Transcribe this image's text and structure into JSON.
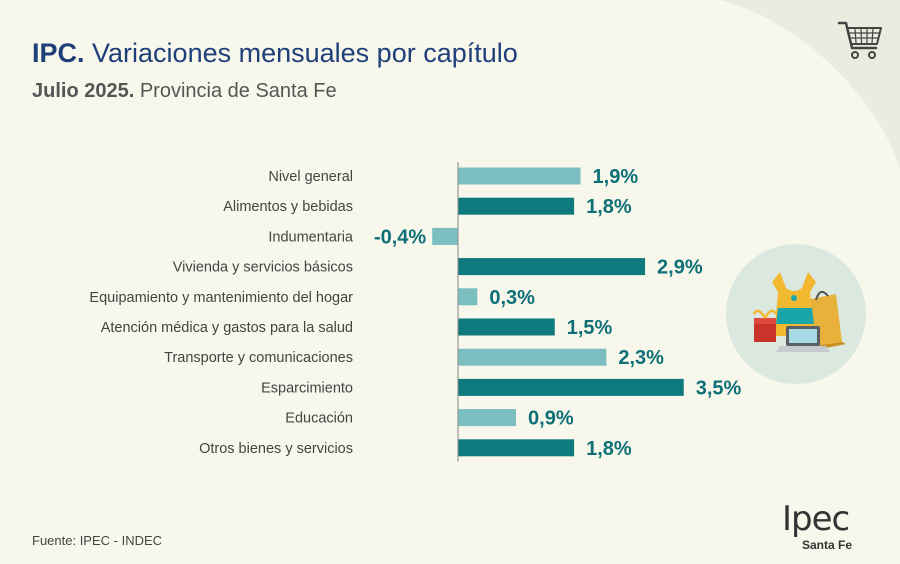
{
  "header": {
    "title_bold": "IPC.",
    "title_rest": "Variaciones mensuales por capítulo",
    "subtitle_bold": "Julio 2025.",
    "subtitle_rest": "Provincia de Santa Fe"
  },
  "footer": {
    "source": "Fuente: IPEC - INDEC"
  },
  "logo": {
    "main": "Ipec",
    "sub": "Santa Fe"
  },
  "icons": {
    "cart": "shopping-cart-icon",
    "illustration": "shopping-illustration-icon"
  },
  "colors": {
    "background": "#f8f7ec",
    "bar_light": "#7bbfc1",
    "bar_dark": "#0e7a7d",
    "value_text": "#0e7077",
    "title": "#1e3f7a"
  },
  "chart_data": {
    "type": "bar",
    "orientation": "horizontal",
    "title": "IPC. Variaciones mensuales por capítulo",
    "subtitle": "Julio 2025. Provincia de Santa Fe",
    "categories": [
      "Nivel general",
      "Alimentos y bebidas",
      "Indumentaria",
      "Vivienda y servicios básicos",
      "Equipamiento y mantenimiento del hogar",
      "Atención médica y gastos para la salud",
      "Transporte y comunicaciones",
      "Esparcimiento",
      "Educación",
      "Otros bienes y servicios"
    ],
    "values": [
      1.9,
      1.8,
      -0.4,
      2.9,
      0.3,
      1.5,
      2.3,
      3.5,
      0.9,
      1.8
    ],
    "value_labels": [
      "1,9%",
      "1,8%",
      "-0,4%",
      "2,9%",
      "0,3%",
      "1,5%",
      "2,3%",
      "3,5%",
      "0,9%",
      "1,8%"
    ],
    "bar_colors": [
      "#7bbfc1",
      "#0e7a7d",
      "#7bbfc1",
      "#0e7a7d",
      "#7bbfc1",
      "#0e7a7d",
      "#7bbfc1",
      "#0e7a7d",
      "#7bbfc1",
      "#0e7a7d"
    ],
    "xlabel": "",
    "ylabel": "",
    "xlim": [
      -0.5,
      3.5
    ],
    "grid": false,
    "legend": "none"
  }
}
